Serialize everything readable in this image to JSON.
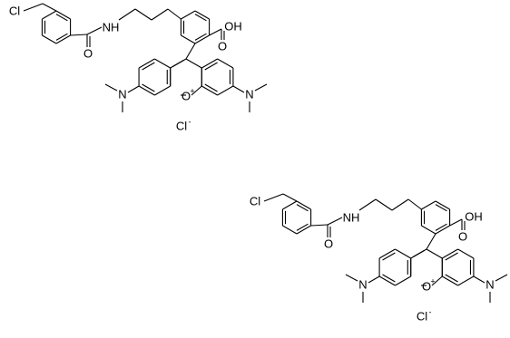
{
  "molecules": [
    {
      "labels": {
        "chloro": "Cl",
        "amide_o": "O",
        "amine": "NH",
        "acid_oh": "OH",
        "acid_o": "O",
        "n_left": "N",
        "n_right": "N",
        "ring_o": "O",
        "ring_charge": "+",
        "counterion": "Cl",
        "counterion_charge": "-"
      }
    },
    {
      "labels": {
        "chloro": "Cl",
        "amide_o": "O",
        "amine": "NH",
        "acid_oh": "OH",
        "acid_o": "O",
        "n_left": "N",
        "n_right": "N",
        "ring_o": "O",
        "ring_charge": "+",
        "counterion": "Cl",
        "counterion_charge": "-"
      }
    }
  ]
}
